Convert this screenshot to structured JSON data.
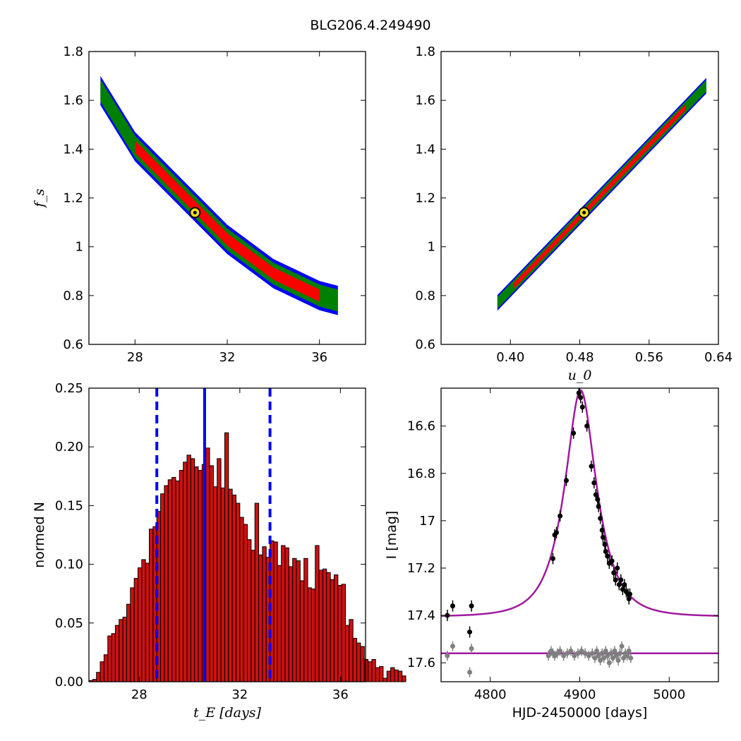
{
  "figure": {
    "title": "BLG206.4.249490"
  },
  "colors": {
    "contour_outer": "#0000ff",
    "contour_mid": "#008000",
    "contour_inner": "#ff0000",
    "histogram_bar": "#cc1111",
    "vline": "#0000ff",
    "model_curve": "#a0199e",
    "data_points": "#000000",
    "residuals": "#808080",
    "best_fit_marker": "#f0e020"
  },
  "chart_data": [
    {
      "id": "tE_fs",
      "type": "heatmap",
      "title": "",
      "xlabel": "",
      "ylabel": "f_s",
      "xlim": [
        26,
        38
      ],
      "ylim": [
        0.6,
        1.8
      ],
      "xticks": [
        28,
        32,
        36
      ],
      "yticks": [
        0.6,
        0.8,
        1.0,
        1.2,
        1.4,
        1.6,
        1.8
      ],
      "band_centerline": [
        [
          26.5,
          1.64
        ],
        [
          28.0,
          1.41
        ],
        [
          30.0,
          1.22
        ],
        [
          32.0,
          1.03
        ],
        [
          34.0,
          0.89
        ],
        [
          36.0,
          0.8
        ],
        [
          36.8,
          0.78
        ]
      ],
      "half_widths": {
        "outer": 0.06,
        "mid": 0.045,
        "inner": 0.025
      },
      "best_fit": [
        30.6,
        1.14
      ]
    },
    {
      "id": "u0_fs",
      "type": "heatmap",
      "title": "",
      "xlabel": "u_0",
      "ylabel": "",
      "xlim": [
        0.32,
        0.64
      ],
      "ylim": [
        0.6,
        1.8
      ],
      "xticks": [
        0.4,
        0.48,
        0.56,
        0.64
      ],
      "xtick_labels": [
        "0.40",
        "0.48",
        "0.56",
        "0.64"
      ],
      "yticks": [
        0.6,
        0.8,
        1.0,
        1.2,
        1.4,
        1.6,
        1.8
      ],
      "band_line": [
        [
          0.385,
          0.77
        ],
        [
          0.626,
          1.66
        ]
      ],
      "half_widths": {
        "outer": 0.032,
        "mid": 0.024,
        "inner": 0.012
      },
      "best_fit": [
        0.485,
        1.14
      ]
    },
    {
      "id": "tE_hist",
      "type": "bar",
      "title": "",
      "xlabel": "t_E [days]",
      "ylabel": "normed N",
      "xlim": [
        26,
        37
      ],
      "ylim": [
        0.0,
        0.25
      ],
      "xticks": [
        28,
        32,
        36
      ],
      "yticks": [
        0.0,
        0.05,
        0.1,
        0.15,
        0.2,
        0.25
      ],
      "ytick_labels": [
        "0.00",
        "0.05",
        "0.10",
        "0.15",
        "0.20",
        "0.25"
      ],
      "bin_start": 26.0,
      "bin_width": 0.15,
      "values": [
        0.001,
        0.002,
        0.008,
        0.017,
        0.023,
        0.039,
        0.041,
        0.048,
        0.053,
        0.055,
        0.066,
        0.08,
        0.088,
        0.097,
        0.104,
        0.101,
        0.13,
        0.132,
        0.145,
        0.16,
        0.167,
        0.172,
        0.174,
        0.171,
        0.18,
        0.187,
        0.193,
        0.19,
        0.183,
        0.18,
        0.185,
        0.199,
        0.184,
        0.166,
        0.19,
        0.165,
        0.212,
        0.164,
        0.159,
        0.152,
        0.14,
        0.134,
        0.121,
        0.112,
        0.152,
        0.108,
        0.115,
        0.106,
        0.12,
        0.119,
        0.099,
        0.116,
        0.114,
        0.098,
        0.105,
        0.103,
        0.086,
        0.105,
        0.08,
        0.079,
        0.116,
        0.095,
        0.096,
        0.093,
        0.087,
        0.091,
        0.082,
        0.083,
        0.048,
        0.053,
        0.037,
        0.033,
        0.03,
        0.019,
        0.017,
        0.019,
        0.012,
        0.013,
        0.003,
        0.009,
        0.012,
        0.01,
        0.009,
        0.005
      ],
      "vlines": {
        "median": 30.6,
        "lower": 28.7,
        "upper": 33.2
      }
    },
    {
      "id": "lightcurve",
      "type": "scatter",
      "title": "",
      "xlabel": "HJD-2450000 [days]",
      "ylabel": "I [mag]",
      "xlim": [
        4745,
        5055
      ],
      "ylim": [
        17.68,
        16.44
      ],
      "xticks": [
        4800,
        4900,
        5000
      ],
      "yticks": [
        16.6,
        16.8,
        17.0,
        17.2,
        17.4,
        17.6
      ],
      "model": {
        "t0": 4901.0,
        "tE": 30.6,
        "u0": 0.485,
        "fs": 1.14,
        "I_base": 17.405,
        "points": 260
      },
      "residual_baseline": 17.56,
      "data": [
        [
          4752,
          17.4
        ],
        [
          4758,
          17.36
        ],
        [
          4777,
          17.47
        ],
        [
          4779,
          17.36
        ],
        [
          4870,
          17.16
        ],
        [
          4872,
          17.06
        ],
        [
          4874,
          17.05
        ],
        [
          4878,
          16.98
        ],
        [
          4885,
          16.83
        ],
        [
          4893,
          16.63
        ],
        [
          4899,
          16.46
        ],
        [
          4901,
          16.48
        ],
        [
          4903,
          16.52
        ],
        [
          4908,
          16.6
        ],
        [
          4913,
          16.77
        ],
        [
          4916,
          16.84
        ],
        [
          4918,
          16.89
        ],
        [
          4920,
          16.91
        ],
        [
          4921,
          16.94
        ],
        [
          4923,
          16.99
        ],
        [
          4925,
          17.04
        ],
        [
          4926,
          17.07
        ],
        [
          4928,
          17.1
        ],
        [
          4929,
          17.13
        ],
        [
          4931,
          17.15
        ],
        [
          4933,
          17.18
        ],
        [
          4936,
          17.17
        ],
        [
          4938,
          17.22
        ],
        [
          4940,
          17.25
        ],
        [
          4942,
          17.2
        ],
        [
          4944,
          17.27
        ],
        [
          4946,
          17.25
        ],
        [
          4948,
          17.29
        ],
        [
          4950,
          17.27
        ],
        [
          4952,
          17.3
        ],
        [
          4954,
          17.31
        ],
        [
          4955,
          17.33
        ],
        [
          4956,
          17.31
        ]
      ],
      "residuals": [
        [
          4752,
          17.57
        ],
        [
          4758,
          17.53
        ],
        [
          4777,
          17.64
        ],
        [
          4779,
          17.54
        ],
        [
          4865,
          17.57
        ],
        [
          4868,
          17.55
        ],
        [
          4870,
          17.56
        ],
        [
          4872,
          17.57
        ],
        [
          4875,
          17.56
        ],
        [
          4878,
          17.55
        ],
        [
          4882,
          17.57
        ],
        [
          4886,
          17.56
        ],
        [
          4890,
          17.55
        ],
        [
          4894,
          17.57
        ],
        [
          4898,
          17.56
        ],
        [
          4902,
          17.55
        ],
        [
          4906,
          17.56
        ],
        [
          4910,
          17.57
        ],
        [
          4914,
          17.56
        ],
        [
          4917,
          17.58
        ],
        [
          4919,
          17.55
        ],
        [
          4921,
          17.57
        ],
        [
          4923,
          17.59
        ],
        [
          4925,
          17.56
        ],
        [
          4927,
          17.58
        ],
        [
          4929,
          17.55
        ],
        [
          4931,
          17.57
        ],
        [
          4933,
          17.6
        ],
        [
          4935,
          17.56
        ],
        [
          4937,
          17.58
        ],
        [
          4939,
          17.55
        ],
        [
          4941,
          17.57
        ],
        [
          4943,
          17.59
        ],
        [
          4945,
          17.56
        ],
        [
          4947,
          17.53
        ],
        [
          4949,
          17.58
        ],
        [
          4951,
          17.56
        ],
        [
          4953,
          17.57
        ],
        [
          4955,
          17.55
        ],
        [
          4957,
          17.58
        ]
      ]
    }
  ]
}
